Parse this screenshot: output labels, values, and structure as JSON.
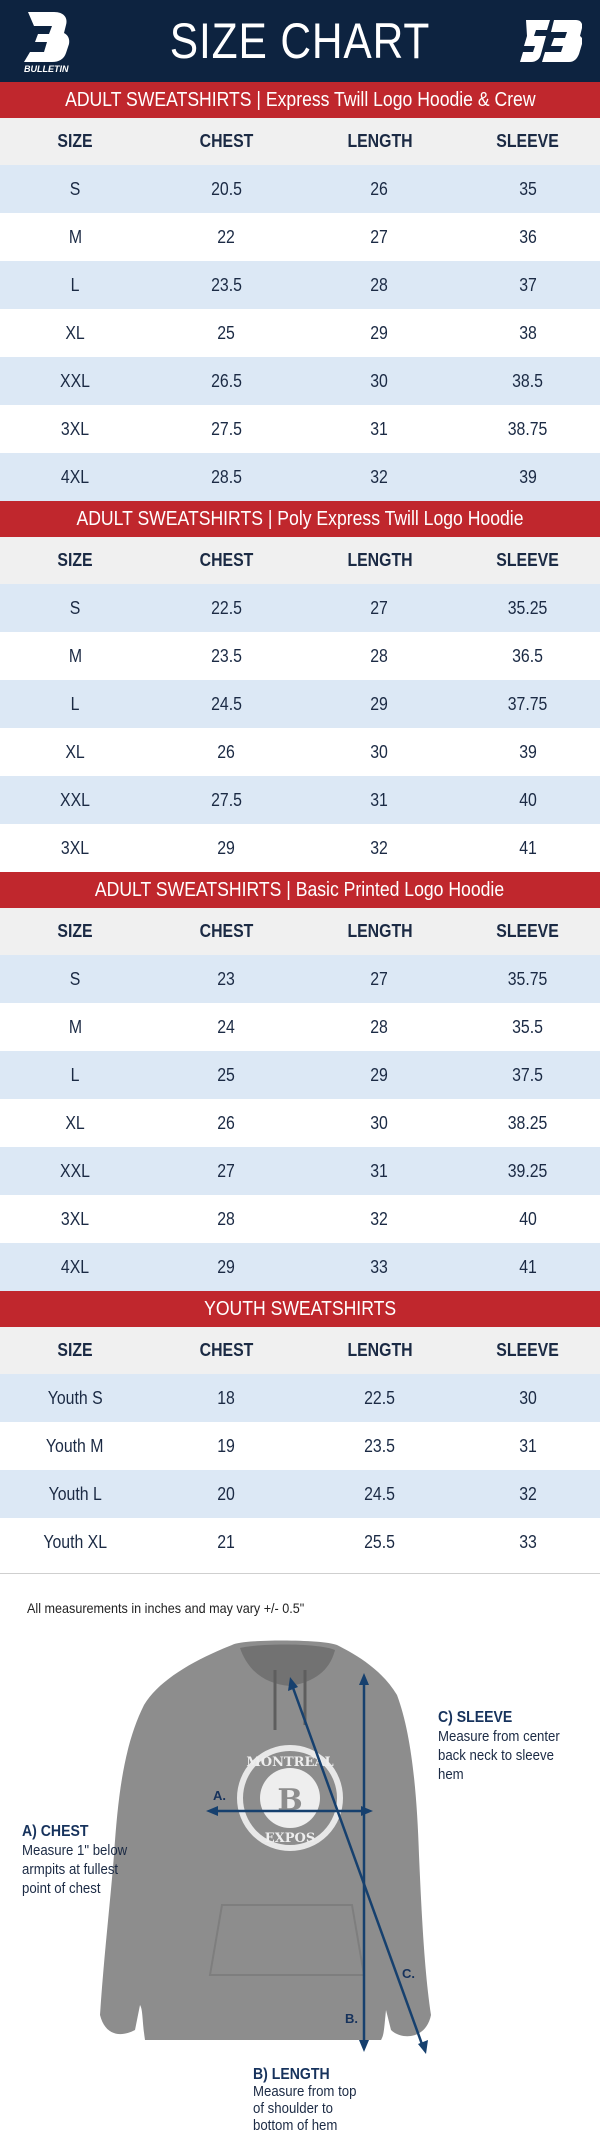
{
  "header": {
    "title": "SIZE CHART",
    "left_logo": "BULLETIN",
    "right_logo": "SB",
    "bg": "#0d2340"
  },
  "accent": "#c0272d",
  "columns": [
    "SIZE",
    "CHEST",
    "LENGTH",
    "SLEEVE"
  ],
  "sections": [
    {
      "title": "ADULT SWEATSHIRTS | Express Twill Logo Hoodie & Crew",
      "rows": [
        [
          "S",
          "20.5",
          "26",
          "35"
        ],
        [
          "M",
          "22",
          "27",
          "36"
        ],
        [
          "L",
          "23.5",
          "28",
          "37"
        ],
        [
          "XL",
          "25",
          "29",
          "38"
        ],
        [
          "XXL",
          "26.5",
          "30",
          "38.5"
        ],
        [
          "3XL",
          "27.5",
          "31",
          "38.75"
        ],
        [
          "4XL",
          "28.5",
          "32",
          "39"
        ]
      ]
    },
    {
      "title": "ADULT SWEATSHIRTS | Poly Express Twill Logo Hoodie",
      "rows": [
        [
          "S",
          "22.5",
          "27",
          "35.25"
        ],
        [
          "M",
          "23.5",
          "28",
          "36.5"
        ],
        [
          "L",
          "24.5",
          "29",
          "37.75"
        ],
        [
          "XL",
          "26",
          "30",
          "39"
        ],
        [
          "XXL",
          "27.5",
          "31",
          "40"
        ],
        [
          "3XL",
          "29",
          "32",
          "41"
        ]
      ]
    },
    {
      "title": "ADULT SWEATSHIRTS | Basic Printed Logo Hoodie",
      "rows": [
        [
          "S",
          "23",
          "27",
          "35.75"
        ],
        [
          "M",
          "24",
          "28",
          "35.5"
        ],
        [
          "L",
          "25",
          "29",
          "37.5"
        ],
        [
          "XL",
          "26",
          "30",
          "38.25"
        ],
        [
          "XXL",
          "27",
          "31",
          "39.25"
        ],
        [
          "3XL",
          "28",
          "32",
          "40"
        ],
        [
          "4XL",
          "29",
          "33",
          "41"
        ]
      ]
    },
    {
      "title": "YOUTH SWEATSHIRTS",
      "rows": [
        [
          "Youth S",
          "18",
          "22.5",
          "30"
        ],
        [
          "Youth M",
          "19",
          "23.5",
          "31"
        ],
        [
          "Youth L",
          "20",
          "24.5",
          "32"
        ],
        [
          "Youth XL",
          "21",
          "25.5",
          "33"
        ]
      ]
    }
  ],
  "guide": {
    "note": "All measurements in inches and may vary +/- 0.5\"",
    "chest": {
      "title": "A) CHEST",
      "lines": [
        "Measure 1\" below",
        "armpits at fullest",
        "point of chest"
      ]
    },
    "length": {
      "title": "B) LENGTH",
      "lines": [
        "Measure from top",
        "of shoulder to",
        "bottom of hem"
      ]
    },
    "sleeve": {
      "title": "C) SLEEVE",
      "lines": [
        "Measure from center",
        "back neck to sleeve hem"
      ]
    },
    "markers": [
      "A.",
      "B.",
      "C."
    ],
    "logo_text": [
      "MONTREAL",
      "EXPOS"
    ]
  }
}
